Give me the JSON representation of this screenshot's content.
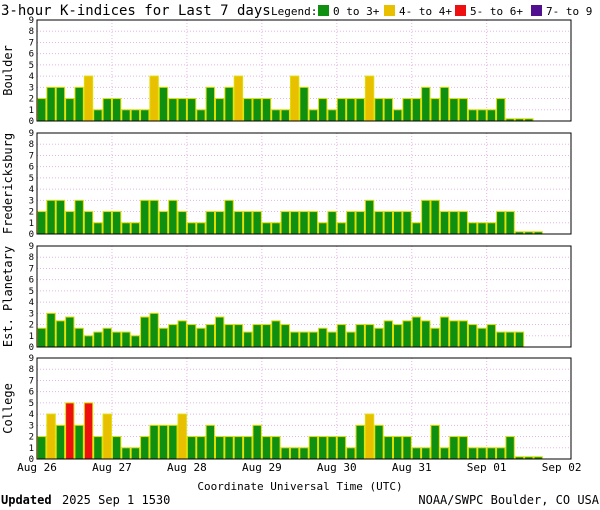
{
  "header": {
    "title": "3-hour K-indices for Last 7 days",
    "legend_title": "Legend:"
  },
  "legend": [
    {
      "label": "0 to 3+",
      "color": "#109010"
    },
    {
      "label": "4- to 4+",
      "color": "#e8c000"
    },
    {
      "label": "5- to 6+",
      "color": "#ee1010"
    },
    {
      "label": "7- to 9",
      "color": "#501090"
    }
  ],
  "colors": {
    "outline": "#dede00",
    "grid": "#e8b5e8",
    "frame": "#000000"
  },
  "chart_data": {
    "type": "bar",
    "xlabel": "Coordinate Universal Time (UTC)",
    "x_tick_labels": [
      "Aug 26",
      "Aug 27",
      "Aug 28",
      "Aug 29",
      "Aug 30",
      "Aug 31",
      "Sep 01",
      "Sep 02"
    ],
    "ylim": [
      0,
      9
    ],
    "y_ticks": [
      0,
      1,
      2,
      3,
      4,
      5,
      6,
      7,
      8,
      9
    ],
    "bins_per_day": 8,
    "thresholds": {
      "green_max": 3.67,
      "yellow_max": 4.67,
      "red_max": 6.67
    },
    "panels": [
      {
        "name": "Boulder",
        "values": [
          2,
          3,
          3,
          2,
          3,
          4,
          1,
          2,
          2,
          1,
          1,
          1,
          4,
          3,
          2,
          2,
          2,
          1,
          3,
          2,
          3,
          4,
          2,
          2,
          2,
          1,
          1,
          4,
          3,
          1,
          2,
          1,
          2,
          2,
          2,
          4,
          2,
          2,
          1,
          2,
          2,
          3,
          2,
          3,
          2,
          2,
          1,
          1,
          1,
          2,
          0.2,
          0.2,
          0.2
        ]
      },
      {
        "name": "Fredericksburg",
        "values": [
          2,
          3,
          3,
          2,
          3,
          2,
          1,
          2,
          2,
          1,
          1,
          3,
          3,
          2,
          3,
          2,
          1,
          1,
          2,
          2,
          3,
          2,
          2,
          2,
          1,
          1,
          2,
          2,
          2,
          2,
          1,
          2,
          1,
          2,
          2,
          3,
          2,
          2,
          2,
          2,
          1,
          3,
          3,
          2,
          2,
          2,
          1,
          1,
          1,
          2,
          2,
          0.2,
          0.2,
          0.2
        ]
      },
      {
        "name": "Est. Planetary",
        "values": [
          1.67,
          3,
          2.33,
          2.67,
          1.67,
          1,
          1.33,
          1.67,
          1.33,
          1.33,
          1,
          2.67,
          3,
          1.67,
          2,
          2.33,
          2,
          1.67,
          2,
          2.67,
          2,
          2,
          1.33,
          2,
          2,
          2.33,
          2,
          1.33,
          1.33,
          1.33,
          1.67,
          1.33,
          2,
          1.33,
          2,
          2,
          1.67,
          2.33,
          2,
          2.33,
          2.67,
          2.33,
          1.67,
          2.67,
          2.33,
          2.33,
          2,
          1.67,
          2,
          1.33,
          1.33,
          1.33
        ]
      },
      {
        "name": "College",
        "values": [
          2,
          4,
          3,
          5,
          3,
          5,
          2,
          4,
          2,
          1,
          1,
          2,
          3,
          3,
          3,
          4,
          2,
          2,
          3,
          2,
          2,
          2,
          2,
          3,
          2,
          2,
          1,
          1,
          1,
          2,
          2,
          2,
          2,
          1,
          3,
          4,
          3,
          2,
          2,
          2,
          1,
          1,
          3,
          1,
          2,
          2,
          1,
          1,
          1,
          1,
          2,
          0.2,
          0.2,
          0.2
        ]
      }
    ]
  },
  "footer": {
    "updated_label": "Updated",
    "updated_value": "2025 Sep  1 1530",
    "source": "NOAA/SWPC Boulder, CO USA"
  }
}
